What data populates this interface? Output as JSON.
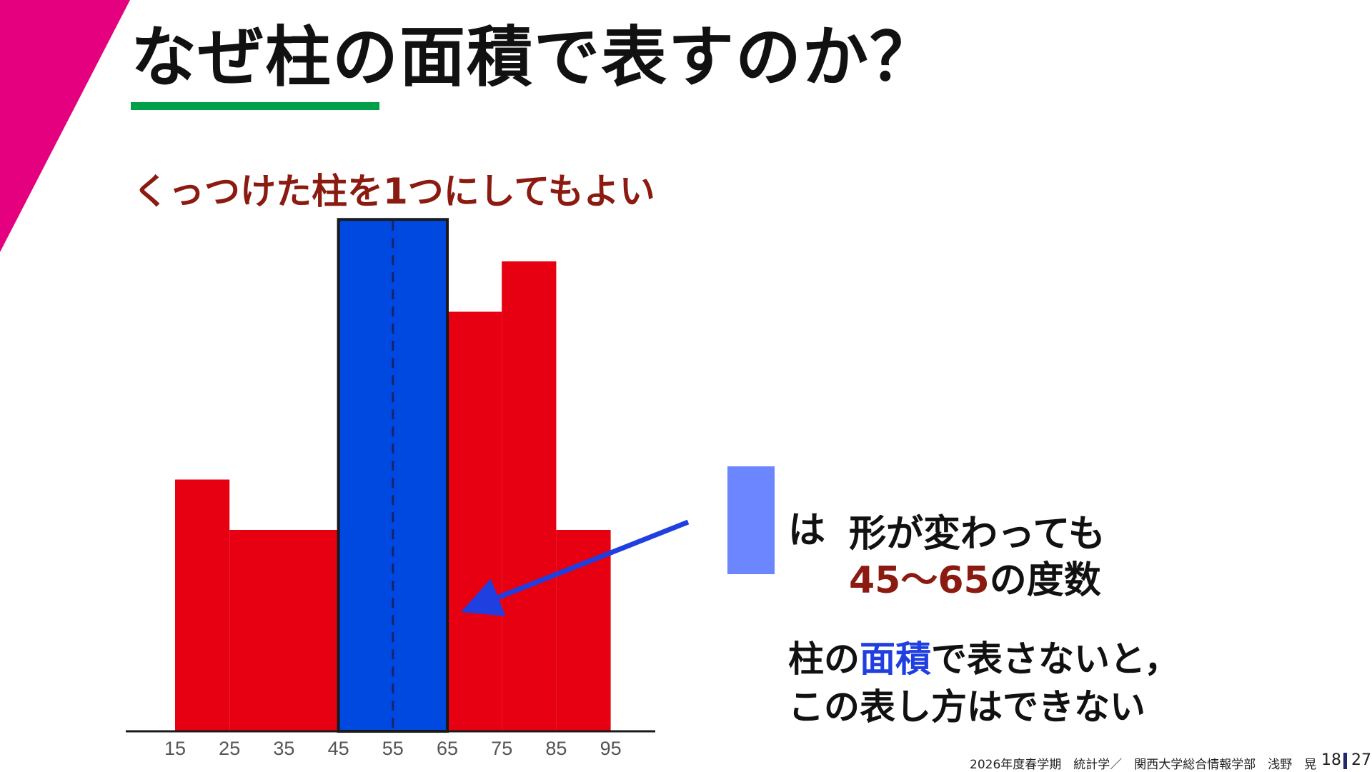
{
  "colors": {
    "accent_magenta": "#e5007f",
    "underline_green": "#00a04a",
    "bar_red": "#e60012",
    "bar_blue": "#0049e0",
    "swatch_blue": "#6b86ff",
    "arrow_blue": "#1f3fe0",
    "text_darkred": "#8b1a10"
  },
  "slide": {
    "title": "なぜ柱の面積で表すのか？",
    "subtitle": "くっつけた柱を1つにしてもよい"
  },
  "note": {
    "ha": "は",
    "line1": "形が変わっても",
    "range": "45～65",
    "line2_rest": "の度数"
  },
  "explanation": {
    "part1": "柱の",
    "highlight": "面積",
    "part2": "で表さないと，",
    "line2": "この表し方はできない"
  },
  "footer": {
    "text": "2026年度春学期　統計学／　関西大学総合情報学部　浅野　晃",
    "page_current": "18",
    "page_total": "27"
  },
  "chart_data": {
    "type": "bar",
    "note": "histogram; y-axis has no printed scale — values are relative heights",
    "x_ticks": [
      "15",
      "25",
      "35",
      "45",
      "55",
      "65",
      "75",
      "85",
      "95"
    ],
    "bins": [
      {
        "from": 15,
        "to": 25,
        "value": 3.0,
        "color": "red"
      },
      {
        "from": 25,
        "to": 45,
        "value": 2.4,
        "color": "red"
      },
      {
        "from": 45,
        "to": 65,
        "value": 6.1,
        "color": "blue",
        "highlight": true,
        "divider_at": 55
      },
      {
        "from": 65,
        "to": 75,
        "value": 5.0,
        "color": "red"
      },
      {
        "from": 75,
        "to": 85,
        "value": 5.6,
        "color": "red"
      },
      {
        "from": 85,
        "to": 95,
        "value": 2.4,
        "color": "red"
      }
    ],
    "x_range": [
      15,
      95
    ],
    "y_range": [
      0,
      6.1
    ],
    "grid": false
  }
}
